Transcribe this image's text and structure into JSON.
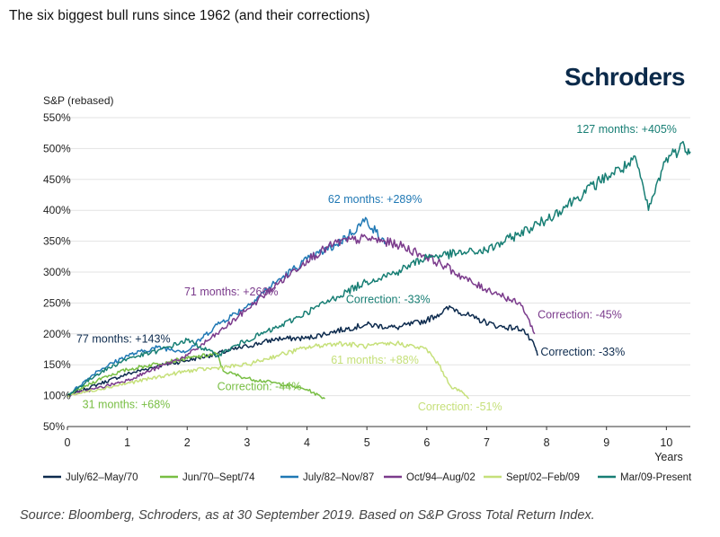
{
  "title": "The six biggest bull runs since 1962 (and their corrections)",
  "logo_text": "Schroders",
  "source_note": "Source: Bloomberg, Schroders, as at 30 September 2019. Based on S&P Gross Total Return Index.",
  "chart_data": {
    "type": "line",
    "title": "",
    "ylabel": "S&P (rebased)",
    "xlabel": "Years",
    "xlim": [
      0,
      10.4
    ],
    "ylim": [
      50,
      550
    ],
    "yticks": [
      50,
      100,
      150,
      200,
      250,
      300,
      350,
      400,
      450,
      500,
      550
    ],
    "ytick_labels": [
      "50%",
      "100%",
      "150%",
      "200%",
      "250%",
      "300%",
      "350%",
      "400%",
      "450%",
      "500%",
      "550%"
    ],
    "xticks": [
      0,
      1,
      2,
      3,
      4,
      5,
      6,
      7,
      8,
      9,
      10
    ],
    "grid": "horizontal",
    "legend_position": "bottom",
    "series": [
      {
        "name": "July/62–May/70",
        "color": "#0d2b4e",
        "points": [
          [
            0,
            100
          ],
          [
            0.5,
            118
          ],
          [
            1,
            135
          ],
          [
            1.5,
            148
          ],
          [
            2,
            157
          ],
          [
            2.5,
            168
          ],
          [
            3,
            180
          ],
          [
            3.5,
            192
          ],
          [
            4,
            193
          ],
          [
            4.5,
            205
          ],
          [
            5,
            215
          ],
          [
            5.5,
            210
          ],
          [
            6,
            222
          ],
          [
            6.4,
            243
          ],
          [
            6.8,
            225
          ],
          [
            7.2,
            212
          ],
          [
            7.6,
            208
          ],
          [
            7.8,
            180
          ],
          [
            7.85,
            165
          ]
        ],
        "annotations": [
          {
            "text": "77 months: +143%",
            "x": 0.15,
            "y": 186
          },
          {
            "text": "Correction: -33%",
            "x": 7.9,
            "y": 165
          }
        ]
      },
      {
        "name": "Jun/70–Sept/74",
        "color": "#78be43",
        "points": [
          [
            0,
            100
          ],
          [
            0.3,
            115
          ],
          [
            0.6,
            130
          ],
          [
            1,
            142
          ],
          [
            1.5,
            152
          ],
          [
            2,
            160
          ],
          [
            2.5,
            168
          ],
          [
            2.6,
            140
          ],
          [
            3,
            128
          ],
          [
            3.5,
            120
          ],
          [
            4,
            110
          ],
          [
            4.3,
            95
          ]
        ],
        "annotations": [
          {
            "text": "31 months: +68%",
            "x": 0.25,
            "y": 80
          },
          {
            "text": "Correction: -44%",
            "x": 2.5,
            "y": 109
          }
        ]
      },
      {
        "name": "July/82–Nov/87",
        "color": "#1f78b4",
        "points": [
          [
            0,
            100
          ],
          [
            0.5,
            140
          ],
          [
            1,
            165
          ],
          [
            1.5,
            178
          ],
          [
            2,
            172
          ],
          [
            2.5,
            215
          ],
          [
            3,
            245
          ],
          [
            3.5,
            285
          ],
          [
            4,
            320
          ],
          [
            4.5,
            345
          ],
          [
            5,
            385
          ],
          [
            5.15,
            365
          ],
          [
            5.3,
            345
          ]
        ],
        "annotations": [
          {
            "text": "62 months: +289%",
            "x": 4.35,
            "y": 412
          }
        ]
      },
      {
        "name": "Oct/94–Aug/02",
        "color": "#7b3b8c",
        "points": [
          [
            0,
            100
          ],
          [
            0.5,
            112
          ],
          [
            1,
            125
          ],
          [
            1.5,
            145
          ],
          [
            2,
            165
          ],
          [
            2.5,
            200
          ],
          [
            3,
            240
          ],
          [
            3.5,
            280
          ],
          [
            4,
            320
          ],
          [
            4.5,
            348
          ],
          [
            5,
            355
          ],
          [
            5.5,
            345
          ],
          [
            6,
            325
          ],
          [
            6.3,
            310
          ],
          [
            6.8,
            280
          ],
          [
            7.2,
            265
          ],
          [
            7.6,
            245
          ],
          [
            7.8,
            200
          ]
        ],
        "annotations": [
          {
            "text": "71 months: +266%",
            "x": 1.95,
            "y": 262
          },
          {
            "text": "Correction: -45%",
            "x": 7.85,
            "y": 225
          }
        ]
      },
      {
        "name": "Sept/02–Feb/09",
        "color": "#c6e07a",
        "points": [
          [
            0,
            100
          ],
          [
            0.5,
            110
          ],
          [
            1,
            120
          ],
          [
            1.5,
            130
          ],
          [
            2,
            140
          ],
          [
            2.5,
            145
          ],
          [
            3,
            150
          ],
          [
            3.5,
            165
          ],
          [
            4,
            178
          ],
          [
            4.5,
            185
          ],
          [
            5,
            180
          ],
          [
            5.5,
            185
          ],
          [
            6,
            175
          ],
          [
            6.2,
            150
          ],
          [
            6.4,
            115
          ],
          [
            6.6,
            105
          ],
          [
            6.7,
            95
          ]
        ],
        "annotations": [
          {
            "text": "61 months: +88%",
            "x": 4.4,
            "y": 152
          },
          {
            "text": "Correction: -51%",
            "x": 5.85,
            "y": 76
          }
        ]
      },
      {
        "name": "Mar/09-Present",
        "color": "#177e74",
        "points": [
          [
            0,
            100
          ],
          [
            0.5,
            135
          ],
          [
            1,
            160
          ],
          [
            1.5,
            172
          ],
          [
            2,
            190
          ],
          [
            2.5,
            165
          ],
          [
            3,
            190
          ],
          [
            3.5,
            210
          ],
          [
            4,
            235
          ],
          [
            4.5,
            260
          ],
          [
            5,
            285
          ],
          [
            5.5,
            300
          ],
          [
            6,
            325
          ],
          [
            6.5,
            330
          ],
          [
            7,
            335
          ],
          [
            7.5,
            360
          ],
          [
            8,
            385
          ],
          [
            8.5,
            420
          ],
          [
            9,
            455
          ],
          [
            9.5,
            480
          ],
          [
            9.7,
            400
          ],
          [
            10,
            485
          ],
          [
            10.3,
            505
          ],
          [
            10.4,
            495
          ]
        ],
        "annotations": [
          {
            "text": "127 months: +405%",
            "x": 8.5,
            "y": 525
          },
          {
            "text": "Correction: -33%",
            "x": 4.65,
            "y": 250
          }
        ]
      }
    ]
  }
}
